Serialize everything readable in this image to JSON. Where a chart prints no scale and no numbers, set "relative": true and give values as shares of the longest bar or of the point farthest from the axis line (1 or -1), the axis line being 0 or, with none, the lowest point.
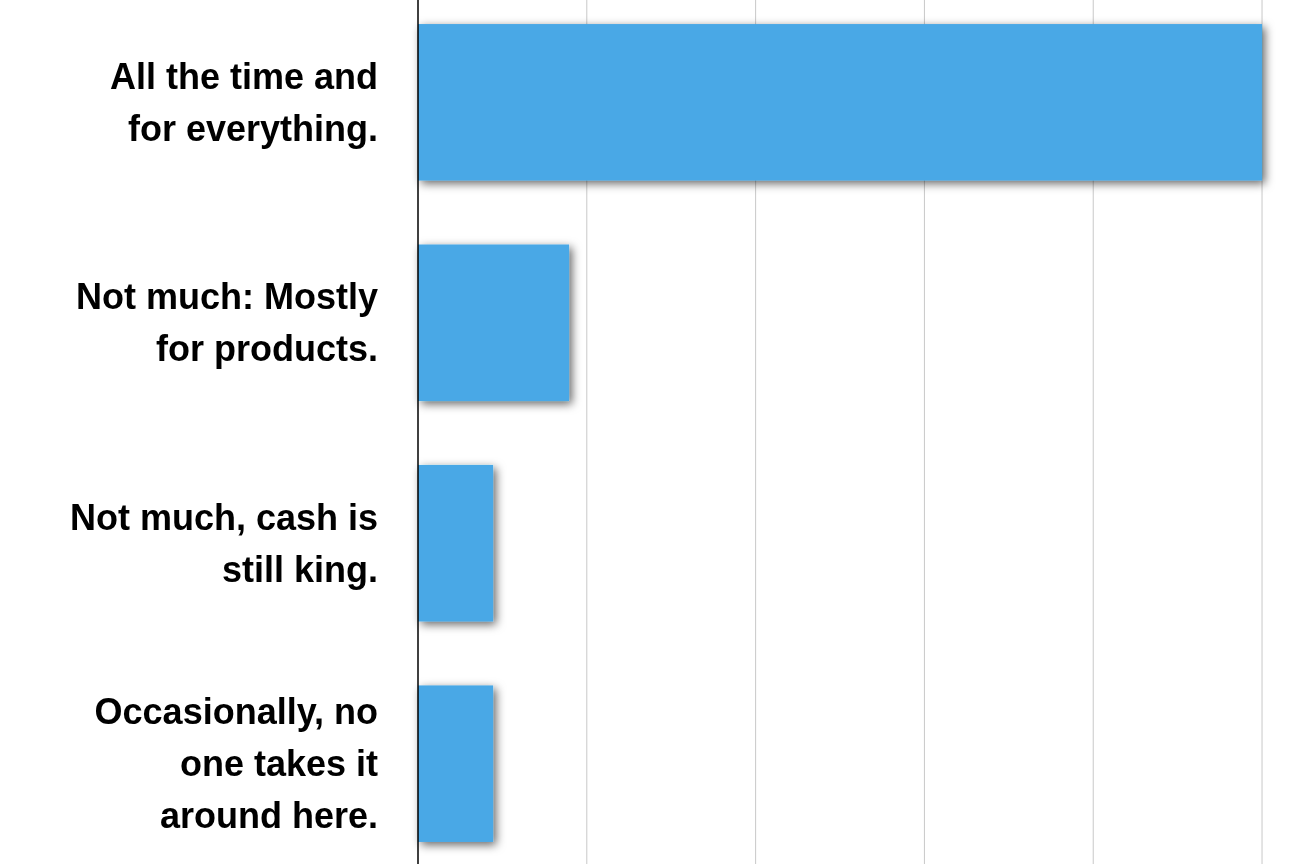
{
  "chart_data": {
    "type": "bar",
    "orientation": "horizontal",
    "relative": true,
    "grid": "x",
    "categories": [
      "All the time and for everything.",
      "Not much: Mostly for products.",
      "Not much, cash is still king.",
      "Occasionally, no one takes it around here."
    ],
    "values": [
      1,
      0.179,
      0.089,
      0.089
    ],
    "color": "#4aa8e6"
  }
}
